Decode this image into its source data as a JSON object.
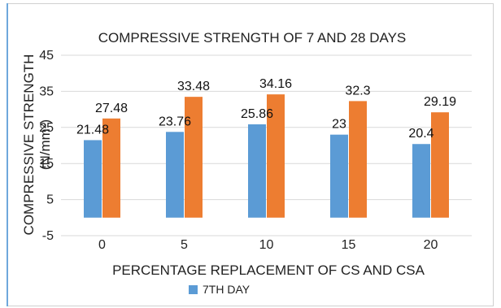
{
  "chart_data": {
    "type": "bar",
    "title": "COMPRESSIVE STRENGTH OF 7 AND 28 DAYS",
    "xlabel": "PERCENTAGE REPLACEMENT OF CS AND CSA",
    "ylabel_line1": "COMPRESSIVE STRENGTH",
    "ylabel_line2": "(N/mm²)",
    "categories": [
      "0",
      "5",
      "10",
      "15",
      "20"
    ],
    "series": [
      {
        "name": "7TH DAY",
        "color": "#5b9bd5",
        "values": [
          21.48,
          23.76,
          25.86,
          23,
          20.4
        ],
        "labels": [
          "21.48",
          "23.76",
          "25.86",
          "23",
          "20.4"
        ]
      },
      {
        "color": "#ed7d31",
        "values": [
          27.48,
          33.48,
          34.16,
          32.3,
          29.19
        ],
        "labels": [
          "27.48",
          "33.48",
          "34.16",
          "32.3",
          "29.19"
        ]
      }
    ],
    "ylim": [
      -5,
      45
    ],
    "yticks": [
      "-5",
      "5",
      "15",
      "25",
      "35",
      "45"
    ],
    "grid": true,
    "legend": "bottom"
  }
}
